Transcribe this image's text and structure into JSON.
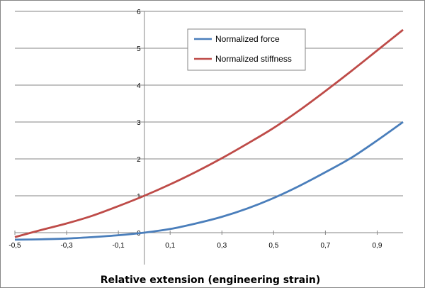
{
  "chart_data": {
    "type": "line",
    "title": "",
    "xlabel": "Relative extension (engineering strain)",
    "ylabel": "",
    "xlim": [
      -0.5,
      1.0
    ],
    "ylim": [
      0,
      6
    ],
    "grid": "horizontal",
    "legend_position": "top-right inside plot",
    "x_tick_labels": [
      "-0,5",
      "-0,3",
      "-0,1",
      "0,1",
      "0,3",
      "0,5",
      "0,7",
      "0,9"
    ],
    "x_tick_values": [
      -0.5,
      -0.3,
      -0.1,
      0.1,
      0.3,
      0.5,
      0.7,
      0.9
    ],
    "y_tick_labels": [
      "0",
      "1",
      "2",
      "3",
      "4",
      "5",
      "6"
    ],
    "y_tick_values": [
      0,
      1,
      2,
      3,
      4,
      5,
      6
    ],
    "series": [
      {
        "name": "Normalized force",
        "color": "#4a7ebb",
        "x": [
          -0.5,
          -0.4,
          -0.3,
          -0.2,
          -0.1,
          0.0,
          0.1,
          0.2,
          0.3,
          0.4,
          0.5,
          0.6,
          0.7,
          0.8,
          0.9,
          1.0
        ],
        "y": [
          -0.19,
          -0.18,
          -0.16,
          -0.12,
          -0.07,
          0.0,
          0.1,
          0.25,
          0.43,
          0.66,
          0.94,
          1.27,
          1.64,
          2.03,
          2.5,
          3.0
        ]
      },
      {
        "name": "Normalized stiffness",
        "color": "#be4b48",
        "x": [
          -0.5,
          -0.4,
          -0.3,
          -0.2,
          -0.1,
          0.0,
          0.1,
          0.2,
          0.3,
          0.4,
          0.5,
          0.6,
          0.7,
          0.8,
          0.9,
          1.0
        ],
        "y": [
          -0.12,
          0.07,
          0.25,
          0.46,
          0.72,
          1.0,
          1.31,
          1.65,
          2.02,
          2.42,
          2.84,
          3.32,
          3.84,
          4.38,
          4.94,
          5.5
        ]
      }
    ]
  }
}
